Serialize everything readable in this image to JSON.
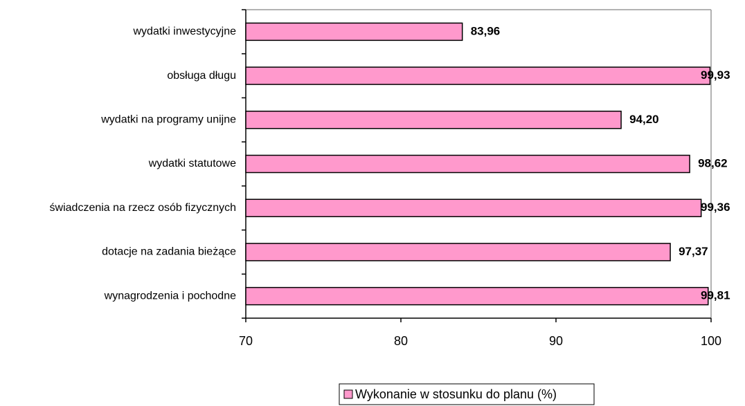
{
  "chart_data": {
    "type": "barh",
    "categories": [
      "wydatki inwestycyjne",
      "obsługa długu",
      "wydatki na programy unijne",
      "wydatki statutowe",
      "świadczenia na rzecz osób fizycznych",
      "dotacje na zadania bieżące",
      "wynagrodzenia i pochodne"
    ],
    "series": [
      {
        "name": "Wykonanie w stosunku do planu (%)",
        "color": "#ff99cc",
        "values": [
          83.96,
          99.93,
          94.2,
          98.62,
          99.36,
          97.37,
          99.81
        ],
        "value_labels": [
          "83,96",
          "99,93",
          "94,20",
          "98,62",
          "99,36",
          "97,37",
          "99,81"
        ]
      }
    ],
    "xlim": [
      70,
      100
    ],
    "xticks": [
      70,
      80,
      90,
      100
    ]
  }
}
